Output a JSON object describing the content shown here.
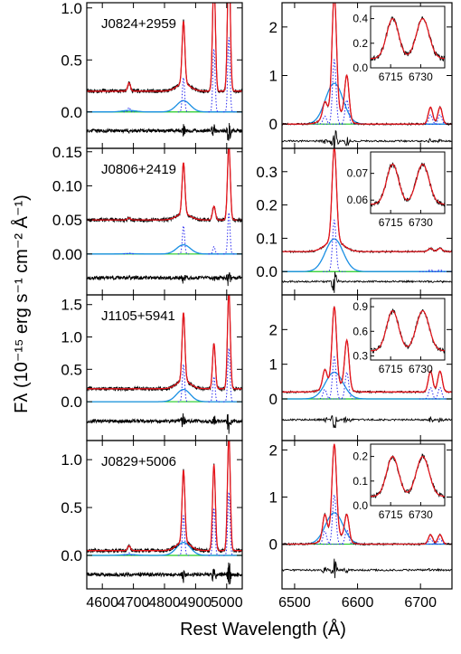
{
  "figure": {
    "ylabel": "Fλ (10⁻¹⁵ erg s⁻¹ cm⁻² Å⁻¹)",
    "xlabel": "Rest Wavelength (Å)"
  },
  "colors": {
    "data": "#000000",
    "model": "#e8141b",
    "broad": "#1a8fe3",
    "narrow": "#2a2af0",
    "continuum": "#22cc22"
  },
  "chart_data": [
    {
      "type": "line",
      "panel": "left-1",
      "object": "J0824+2959",
      "xlim": [
        4550,
        5050
      ],
      "ylim": [
        -0.35,
        1.05
      ],
      "xticks": [
        4600,
        4700,
        4800,
        4900,
        5000
      ],
      "yticks": [
        0.0,
        0.5,
        1.0
      ],
      "ytick_labels": [
        "0.0",
        "0.5",
        "1.0"
      ],
      "continuum": 0.2,
      "residual_offset": -0.18,
      "peaks": [
        4686,
        4861,
        4959,
        5007
      ],
      "peak_heights": [
        0.08,
        0.6,
        1.1,
        1.3
      ]
    },
    {
      "type": "line",
      "panel": "left-2",
      "object": "J0806+2419",
      "xlim": [
        4550,
        5050
      ],
      "ylim": [
        -0.06,
        0.155
      ],
      "xticks": [
        4600,
        4700,
        4800,
        4900,
        5000
      ],
      "yticks": [
        0.0,
        0.05,
        0.1,
        0.15
      ],
      "ytick_labels": [
        "0.00",
        "0.05",
        "0.10",
        "0.15"
      ],
      "continuum": 0.05,
      "residual_offset": -0.035,
      "peaks": [
        4686,
        4861,
        4959,
        5007
      ],
      "peak_heights": [
        0.003,
        0.075,
        0.02,
        0.11
      ]
    },
    {
      "type": "line",
      "panel": "left-3",
      "object": "J1105+5941",
      "xlim": [
        4550,
        5050
      ],
      "ylim": [
        -0.6,
        1.65
      ],
      "xticks": [
        4600,
        4700,
        4800,
        4900,
        5000
      ],
      "yticks": [
        0.0,
        0.5,
        1.0,
        1.5
      ],
      "ytick_labels": [
        "0.0",
        "0.5",
        "1.0",
        "1.5"
      ],
      "continuum": 0.2,
      "residual_offset": -0.3,
      "peaks": [
        4861,
        4959,
        5007
      ],
      "peak_heights": [
        1.05,
        0.7,
        1.5
      ]
    },
    {
      "type": "line",
      "panel": "left-4",
      "object": "J0829+5006",
      "xlim": [
        4550,
        5050
      ],
      "ylim": [
        -0.35,
        1.2
      ],
      "xticks": [
        4600,
        4700,
        4800,
        4900,
        5000
      ],
      "yticks": [
        0.0,
        0.5,
        1.0
      ],
      "ytick_labels": [
        "0.0",
        "0.5",
        "1.0"
      ],
      "continuum": 0.05,
      "residual_offset": -0.2,
      "peaks": [
        4686,
        4861,
        4959,
        5007
      ],
      "peak_heights": [
        0.05,
        0.75,
        0.9,
        1.2
      ]
    },
    {
      "type": "line",
      "panel": "right-1",
      "xlim": [
        6480,
        6750
      ],
      "ylim": [
        -0.5,
        2.5
      ],
      "xticks": [
        6500,
        6600,
        6700
      ],
      "yticks": [
        0,
        1,
        2
      ],
      "ytick_labels": [
        "0",
        "1",
        "2"
      ],
      "continuum": 0.0,
      "residual_offset": -0.35,
      "peaks": [
        6548,
        6563,
        6583,
        6716,
        6731
      ],
      "peak_heights": [
        0.3,
        2.4,
        0.9,
        0.35,
        0.35
      ],
      "inset": {
        "xticks": [
          6715,
          6730
        ],
        "yticks": [
          0.0,
          0.2,
          0.4
        ],
        "ytick_labels": [
          "0.0",
          "0.2",
          "0.4"
        ],
        "ylim": [
          0.0,
          0.5
        ]
      }
    },
    {
      "type": "line",
      "panel": "right-2",
      "xlim": [
        6480,
        6750
      ],
      "ylim": [
        -0.07,
        0.37
      ],
      "xticks": [
        6500,
        6600,
        6700
      ],
      "yticks": [
        0.0,
        0.1,
        0.2,
        0.3
      ],
      "ytick_labels": [
        "0.0",
        "0.1",
        "0.2",
        "0.3"
      ],
      "continuum": 0.06,
      "residual_offset": -0.03,
      "peaks": [
        6563,
        6716,
        6731
      ],
      "peak_heights": [
        0.28,
        0.01,
        0.01
      ],
      "inset": {
        "xticks": [
          6715,
          6730
        ],
        "yticks": [
          0.06,
          0.07
        ],
        "ytick_labels": [
          "0.06",
          "0.07"
        ],
        "ylim": [
          0.055,
          0.078
        ]
      }
    },
    {
      "type": "line",
      "panel": "right-3",
      "xlim": [
        6480,
        6750
      ],
      "ylim": [
        -1.2,
        3.0
      ],
      "xticks": [
        6500,
        6600,
        6700
      ],
      "yticks": [
        0,
        1,
        2
      ],
      "ytick_labels": [
        "0",
        "1",
        "2"
      ],
      "continuum": 0.2,
      "residual_offset": -0.6,
      "peaks": [
        6548,
        6563,
        6583,
        6716,
        6731
      ],
      "peak_heights": [
        0.5,
        2.2,
        1.4,
        0.6,
        0.6
      ],
      "inset": {
        "xticks": [
          6715,
          6730
        ],
        "yticks": [
          0.3,
          0.6,
          0.9
        ],
        "ytick_labels": [
          "0.3",
          "0.6",
          "0.9"
        ],
        "ylim": [
          0.25,
          1.0
        ]
      }
    },
    {
      "type": "line",
      "panel": "right-4",
      "xlim": [
        6480,
        6750
      ],
      "ylim": [
        -0.95,
        2.2
      ],
      "xticks": [
        6500,
        6600,
        6700
      ],
      "yticks": [
        0,
        1,
        2
      ],
      "ytick_labels": [
        "0",
        "1",
        "2"
      ],
      "continuum": 0.0,
      "residual_offset": -0.55,
      "peaks": [
        6548,
        6563,
        6583,
        6716,
        6731
      ],
      "peak_heights": [
        0.5,
        1.9,
        0.55,
        0.2,
        0.2
      ],
      "inset": {
        "xticks": [
          6715,
          6730
        ],
        "yticks": [
          0.0,
          0.1,
          0.2
        ],
        "ytick_labels": [
          "0.0",
          "0.1",
          "0.2"
        ],
        "ylim": [
          0.0,
          0.25
        ]
      }
    }
  ]
}
